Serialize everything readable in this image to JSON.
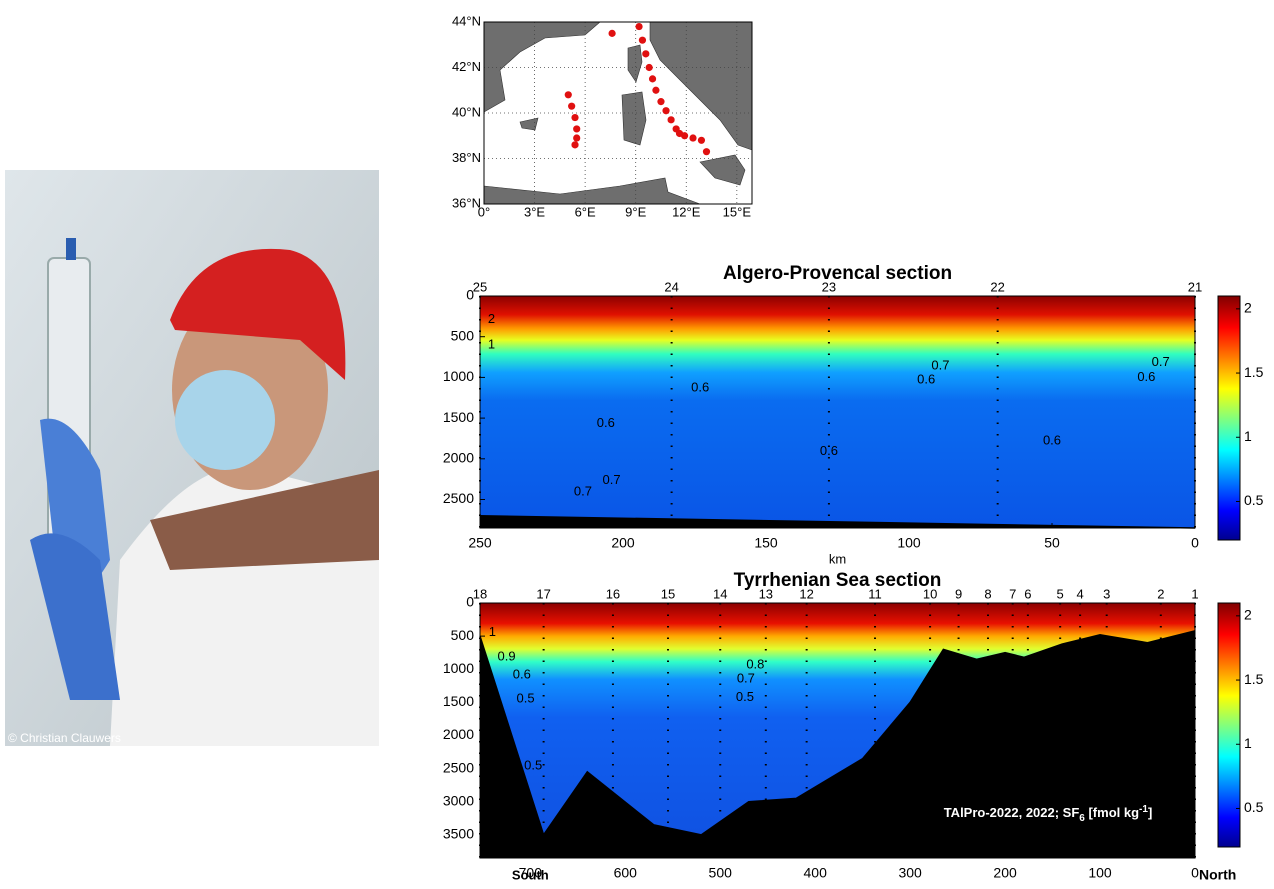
{
  "photo": {
    "credit": "© Christian Clauwers"
  },
  "chart_data": [
    {
      "type": "map",
      "xlim": [
        0,
        15.9
      ],
      "ylim": [
        36,
        44
      ],
      "xticks": [
        {
          "value": 0,
          "label": "0°"
        },
        {
          "value": 3,
          "label": "3°E"
        },
        {
          "value": 6,
          "label": "6°E"
        },
        {
          "value": 9,
          "label": "9°E"
        },
        {
          "value": 12,
          "label": "12°E"
        },
        {
          "value": 15,
          "label": "15°E"
        }
      ],
      "yticks": [
        {
          "value": 36,
          "label": "36°N"
        },
        {
          "value": 38,
          "label": "38°N"
        },
        {
          "value": 40,
          "label": "40°N"
        },
        {
          "value": 42,
          "label": "42°N"
        },
        {
          "value": 44,
          "label": "44°N"
        }
      ],
      "grid": true,
      "color": "#e01010",
      "x": [
        7.6,
        9.2,
        9.4,
        9.6,
        9.8,
        10.0,
        10.2,
        10.5,
        10.8,
        11.1,
        11.4,
        11.6,
        11.9,
        12.4,
        12.9,
        13.2,
        5.0,
        5.2,
        5.4,
        5.5,
        5.5,
        5.4
      ],
      "y": [
        43.5,
        43.8,
        43.2,
        42.6,
        42.0,
        41.5,
        41.0,
        40.5,
        40.1,
        39.7,
        39.3,
        39.1,
        39.0,
        38.9,
        38.8,
        38.3,
        40.8,
        40.3,
        39.8,
        39.3,
        38.9,
        38.6
      ]
    },
    {
      "type": "section",
      "title": "Algero-Provencal section",
      "xlabel": "km",
      "xlim": [
        250,
        0
      ],
      "ylim": [
        0,
        2850
      ],
      "xticks": [
        250,
        200,
        150,
        100,
        50,
        0
      ],
      "yticks": [
        0,
        500,
        1000,
        1500,
        2000,
        2500
      ],
      "stations": {
        "names": [
          25,
          24,
          23,
          22,
          21
        ],
        "km": [
          250,
          183,
          128,
          69,
          0
        ]
      },
      "bottom": {
        "km": [
          250,
          0
        ],
        "depth": [
          2700,
          2850
        ]
      },
      "contour_labels": {
        "labels": [
          2,
          1,
          0.6,
          0.6,
          0.6,
          0.6,
          0.6,
          0.6,
          0.7,
          0.7,
          0.7,
          0.7
        ],
        "km": [
          246,
          246,
          173,
          94,
          17,
          206,
          128,
          50,
          204,
          214,
          89,
          12
        ],
        "depth": [
          290,
          600,
          1130,
          1030,
          1000,
          1570,
          1910,
          1780,
          2270,
          2410,
          860,
          820
        ]
      },
      "clim": [
        0.2,
        2.1
      ],
      "cticks": [
        0.5,
        1,
        1.5,
        2
      ]
    },
    {
      "type": "section",
      "title": "Tyrrhenian Sea section",
      "xlabel": "km",
      "xlim": [
        753,
        0
      ],
      "ylim": [
        0,
        3850
      ],
      "xticks": [
        700,
        600,
        500,
        400,
        300,
        200,
        100,
        0
      ],
      "yticks": [
        0,
        500,
        1000,
        1500,
        2000,
        2500,
        3000,
        3500
      ],
      "x_end_labels": [
        "South",
        "North"
      ],
      "stations": {
        "names": [
          18,
          17,
          16,
          15,
          14,
          13,
          12,
          11,
          10,
          9,
          8,
          7,
          6,
          5,
          4,
          3,
          2,
          1
        ],
        "km": [
          753,
          686,
          613,
          555,
          500,
          452,
          409,
          337,
          279,
          249,
          218,
          192,
          176,
          142,
          121,
          93,
          36,
          0
        ]
      },
      "bottom": {
        "km": [
          753,
          686,
          640,
          570,
          520,
          470,
          420,
          350,
          300,
          265,
          230,
          200,
          180,
          140,
          100,
          50,
          0
        ],
        "depth": [
          500,
          3500,
          2550,
          3350,
          3500,
          3000,
          2950,
          2350,
          1500,
          700,
          850,
          750,
          820,
          620,
          480,
          600,
          420
        ]
      },
      "contour_labels": {
        "labels": [
          1,
          0.9,
          0.6,
          0.5,
          0.5,
          0.8,
          0.7,
          0.5
        ],
        "km": [
          740,
          725,
          709,
          705,
          697,
          463,
          473,
          474
        ],
        "depth": [
          450,
          815,
          1090,
          1450,
          2460,
          940,
          1150,
          1430
        ]
      },
      "annotation": {
        "text": "TAlPro-2022, 2022; SF",
        "sub": "6",
        "mid": " [fmol kg",
        "sup": "-1",
        "end": "]"
      },
      "clim": [
        0.2,
        2.1
      ],
      "cticks": [
        0.5,
        1,
        1.5,
        2
      ]
    }
  ]
}
